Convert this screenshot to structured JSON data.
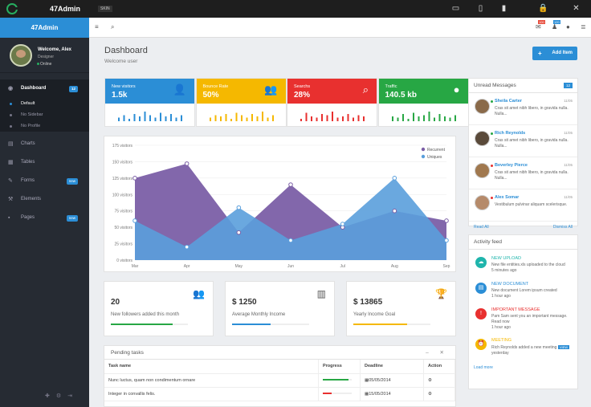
{
  "topbar": {
    "app": "47Admin",
    "skin": "SKIN"
  },
  "sidebar": {
    "brand": "47Admin",
    "user": "Welcome, Alex",
    "role": "Designer",
    "status": "Online",
    "items": [
      {
        "label": "Dashboard",
        "badge": "12"
      },
      {
        "label": "Charts"
      },
      {
        "label": "Tables"
      },
      {
        "label": "Forms",
        "badge": "new"
      },
      {
        "label": "Elements"
      },
      {
        "label": "Pages",
        "badge": "new"
      }
    ],
    "sub": [
      "Default",
      "No Sidebar",
      "No Profile"
    ]
  },
  "header": {
    "badge1": "100",
    "badge2": "120"
  },
  "page": {
    "title": "Dashboard",
    "subtitle": "Welcome user",
    "add_label": "Add Item"
  },
  "stats": [
    {
      "label": "New visitors",
      "value": "1.5k",
      "color": "#2b8ed6",
      "bars": [
        3,
        5,
        2,
        6,
        4,
        8,
        5,
        3,
        7,
        4,
        6,
        3,
        5
      ]
    },
    {
      "label": "Bounce Rate",
      "value": "50%",
      "color": "#f5b800",
      "bars": [
        3,
        5,
        4,
        6,
        2,
        7,
        5,
        3,
        6,
        4,
        8,
        3,
        5
      ]
    },
    {
      "label": "Searchs",
      "value": "28%",
      "color": "#e8302f",
      "bars": [
        2,
        7,
        4,
        3,
        6,
        5,
        8,
        3,
        4,
        6,
        3,
        5,
        4
      ]
    },
    {
      "label": "Traffic",
      "value": "140.5 kb",
      "color": "#27a744",
      "bars": [
        4,
        3,
        6,
        2,
        7,
        4,
        5,
        8,
        3,
        6,
        4,
        3,
        5
      ]
    }
  ],
  "chart_data": {
    "type": "area",
    "x": [
      "Mar",
      "Apr",
      "May",
      "Jun",
      "Jul",
      "Aug",
      "Sep"
    ],
    "yticks": [
      "0 visitors",
      "25 visitors",
      "50 visitors",
      "75 visitors",
      "100 visitors",
      "125 visitors",
      "150 visitors",
      "175 visitors"
    ],
    "ylim": [
      0,
      175
    ],
    "series": [
      {
        "name": "Recurrent",
        "color": "#7b5fa6",
        "values": [
          125,
          147,
          42,
          115,
          50,
          75,
          60
        ]
      },
      {
        "name": "Uniques",
        "color": "#5a9fdc",
        "values": [
          60,
          20,
          80,
          30,
          55,
          125,
          30
        ]
      }
    ]
  },
  "minis": [
    {
      "value": "20",
      "label": "New followers added this month",
      "color": "#27a744",
      "fill": 0.8
    },
    {
      "value": "$ 1250",
      "label": "Average Monthly Income",
      "color": "#2b8ed6",
      "fill": 0.5
    },
    {
      "value": "$ 13865",
      "label": "Yearly Income Goal",
      "color": "#f5b800",
      "fill": 0.7
    }
  ],
  "tasks": {
    "title": "Pending tasks",
    "headers": [
      "Task name",
      "Progress",
      "Deadline",
      "Action"
    ],
    "rows": [
      {
        "name": "Nunc luctus, quam non condimentum ornare",
        "deadline": "05/05/2014",
        "fill": 0.9,
        "color": "#27a744"
      },
      {
        "name": "Integer in convallis felis.",
        "deadline": "15/05/2014",
        "fill": 0.3,
        "color": "#e8302f"
      }
    ]
  },
  "messages": {
    "title": "Unread Messages",
    "count": "12",
    "see": "Read All",
    "dismiss": "Dismiss All",
    "items": [
      {
        "name": "Sheila Carter",
        "time": "11/05",
        "text": "Cras sit amet nibh libero, in gravida nulla. Nulla...",
        "dot": "#27a744"
      },
      {
        "name": "Rich Reynolds",
        "time": "11/05",
        "text": "Cras sit amet nibh libero, in gravida nulla. Nulla...",
        "dot": "#27a744"
      },
      {
        "name": "Beverley Pierce",
        "time": "11/05",
        "text": "Cras sit amet nibh libero, in gravida nulla. Nulla...",
        "dot": "#e8302f"
      },
      {
        "name": "Alex Somar",
        "time": "11/05",
        "text": "Vestibulum pulvinar aliquam scelerisque.",
        "dot": "#e8302f"
      }
    ]
  },
  "activity": {
    "title": "Activity feed",
    "more": "Load more",
    "items": [
      {
        "head": "NEW UPLOAD",
        "text": "New file entities.xls uploaded to the cloud",
        "time": "5 minutes ago",
        "color": "#1fb5ac"
      },
      {
        "head": "NEW DOCUMENT",
        "text": "New document Lorem ipsum created",
        "time": "1 hour ago",
        "color": "#2b8ed6"
      },
      {
        "head": "IMPORTANT MESSAGE",
        "text": "Pam Sam sent you an important message. Read now",
        "time": "1 hour ago",
        "color": "#e8302f"
      },
      {
        "head": "MEETING",
        "text": "Rich Reynolds added a new meeting",
        "time": "yesterday",
        "color": "#f5b800",
        "tag": "VIEW"
      }
    ]
  }
}
